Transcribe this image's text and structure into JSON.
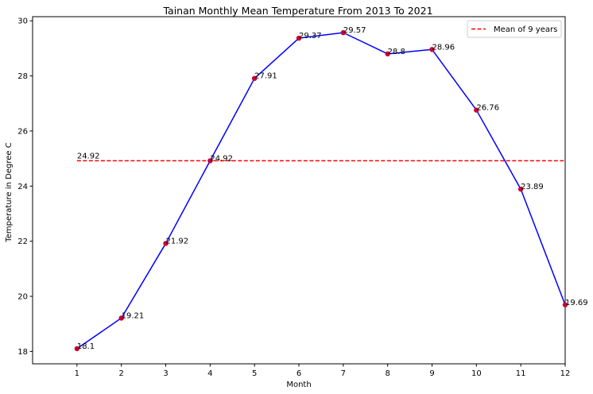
{
  "chart_data": {
    "type": "line",
    "title": "Tainan Monthly Mean Temperature From 2013 To 2021",
    "xlabel": "Month",
    "ylabel": "Temperature in Degree C",
    "x": [
      1,
      2,
      3,
      4,
      5,
      6,
      7,
      8,
      9,
      10,
      11,
      12
    ],
    "x_tick_labels": [
      "1",
      "2",
      "3",
      "4",
      "5",
      "6",
      "7",
      "8",
      "9",
      "10",
      "11",
      "12"
    ],
    "xlim": [
      0,
      12
    ],
    "ylim": [
      17.55,
      30.15
    ],
    "y_ticks": [
      18,
      20,
      22,
      24,
      26,
      28,
      30
    ],
    "y_tick_labels": [
      "18",
      "20",
      "22",
      "24",
      "26",
      "28",
      "30"
    ],
    "series": [
      {
        "values": [
          18.1,
          19.21,
          21.92,
          24.92,
          27.91,
          29.37,
          29.57,
          28.8,
          28.96,
          26.76,
          23.89,
          19.69
        ],
        "labels": [
          "18.1",
          "19.21",
          "21.92",
          "24.92",
          "27.91",
          "29.37",
          "29.57",
          "28.8",
          "28.96",
          "26.76",
          "23.89",
          "19.69"
        ],
        "line_color": "#0000ff",
        "marker_color": "#cc0033"
      }
    ],
    "reference_line": {
      "name": "Mean of 9 years",
      "value": 24.92,
      "label": "24.92",
      "x_start": 1,
      "color": "#ff0000",
      "style": "dashed"
    },
    "legend": {
      "position": "top-right",
      "entries": [
        "Mean of 9 years"
      ]
    },
    "grid": false
  }
}
